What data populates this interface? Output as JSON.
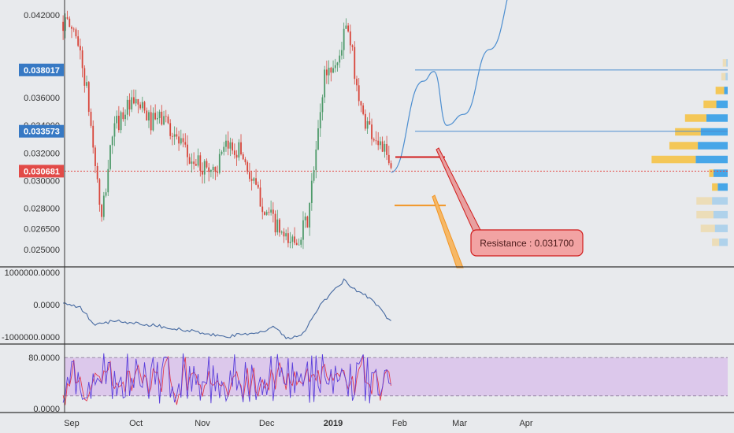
{
  "colors": {
    "background": "#e8eaed",
    "up_candle": "#4e9a6a",
    "down_candle": "#d8453a",
    "price_tag": "#3779c4",
    "current_tag": "#e24a47",
    "resistance": "#d01c1c",
    "support": "#f29422",
    "projection": "#4c8ed0",
    "volume_buy": "#46a6e8",
    "volume_sell": "#f4c757",
    "oscillator_zone": "#d8bfea",
    "rsi_line": "#5b3fdb",
    "rsi_line2": "#e23a50",
    "obv_line": "#4468a0"
  },
  "price_axis": {
    "ticks": [
      "0.042000",
      "0.036000",
      "0.032000",
      "0.030000",
      "0.028000",
      "0.026500",
      "0.025000"
    ],
    "tick_values": [
      0.042,
      0.036,
      0.032,
      0.03,
      0.028,
      0.0265,
      0.025
    ],
    "partial_tick": "0.034000",
    "partial_tick_value": 0.034
  },
  "price_tags": [
    {
      "label": "0.038017",
      "value": 0.038017,
      "kind": "level"
    },
    {
      "label": "0.033573",
      "value": 0.033573,
      "kind": "level"
    },
    {
      "label": "0.030681",
      "value": 0.030681,
      "kind": "current"
    }
  ],
  "annotations": {
    "resistance_label": "Resistance : 0.031700",
    "resistance_value": 0.0317,
    "support_value": 0.0282
  },
  "obv_axis": {
    "ticks": [
      "1000000.0000",
      "0.0000",
      "-1000000.0000"
    ],
    "tick_values": [
      1000000,
      0,
      -1000000
    ]
  },
  "rsi_axis": {
    "ticks": [
      "80.0000",
      "0.0000"
    ],
    "tick_values": [
      80,
      0
    ]
  },
  "time_axis": {
    "labels": [
      {
        "text": "Sep",
        "date": "2018-09-01",
        "bold": false
      },
      {
        "text": "Oct",
        "date": "2018-10-01",
        "bold": false
      },
      {
        "text": "Nov",
        "date": "2018-11-01",
        "bold": false
      },
      {
        "text": "Dec",
        "date": "2018-12-01",
        "bold": false
      },
      {
        "text": "2019",
        "date": "2019-01-01",
        "bold": true
      },
      {
        "text": "Feb",
        "date": "2019-02-01",
        "bold": false
      },
      {
        "text": "Mar",
        "date": "2019-03-01",
        "bold": false
      },
      {
        "text": "Apr",
        "date": "2019-04-01",
        "bold": false
      }
    ]
  },
  "chart_data": [
    {
      "type": "candlestick",
      "title": "",
      "ylim": [
        0.0238,
        0.0428
      ],
      "xlim": [
        "2018-08-27",
        "2019-05-15"
      ],
      "close_path": [
        [
          "2018-08-28",
          0.0415
        ],
        [
          "2018-09-03",
          0.0408
        ],
        [
          "2018-09-08",
          0.0365
        ],
        [
          "2018-09-12",
          0.0312
        ],
        [
          "2018-09-15",
          0.027
        ],
        [
          "2018-09-20",
          0.0335
        ],
        [
          "2018-09-26",
          0.0352
        ],
        [
          "2018-10-02",
          0.0355
        ],
        [
          "2018-10-08",
          0.0342
        ],
        [
          "2018-10-14",
          0.0346
        ],
        [
          "2018-10-20",
          0.033
        ],
        [
          "2018-10-26",
          0.0315
        ],
        [
          "2018-11-01",
          0.031
        ],
        [
          "2018-11-07",
          0.0308
        ],
        [
          "2018-11-13",
          0.0325
        ],
        [
          "2018-11-19",
          0.0322
        ],
        [
          "2018-11-24",
          0.03
        ],
        [
          "2018-11-30",
          0.028
        ],
        [
          "2018-12-05",
          0.0268
        ],
        [
          "2018-12-10",
          0.0255
        ],
        [
          "2018-12-15",
          0.0258
        ],
        [
          "2018-12-20",
          0.027
        ],
        [
          "2018-12-24",
          0.032
        ],
        [
          "2018-12-28",
          0.0378
        ],
        [
          "2019-01-03",
          0.0385
        ],
        [
          "2019-01-07",
          0.0412
        ],
        [
          "2019-01-10",
          0.039
        ],
        [
          "2019-01-14",
          0.035
        ],
        [
          "2019-01-19",
          0.0335
        ],
        [
          "2019-01-24",
          0.0325
        ],
        [
          "2019-01-28",
          0.0306
        ]
      ],
      "volume_profile": {
        "levels": [
          0.0385,
          0.0375,
          0.0365,
          0.0355,
          0.0345,
          0.0335,
          0.0325,
          0.0315,
          0.0305,
          0.0295,
          0.0285,
          0.0275,
          0.0265,
          0.0255
        ],
        "buy": [
          0.02,
          0.03,
          0.05,
          0.16,
          0.3,
          0.38,
          0.42,
          0.45,
          0.2,
          0.14,
          0.22,
          0.2,
          0.18,
          0.12
        ],
        "sell": [
          0.05,
          0.06,
          0.12,
          0.18,
          0.3,
          0.36,
          0.4,
          0.62,
          0.06,
          0.08,
          0.22,
          0.24,
          0.2,
          0.1
        ]
      },
      "projection": [
        [
          "2019-01-28",
          0.0306
        ],
        [
          "2019-02-12",
          0.0372
        ],
        [
          "2019-02-17",
          0.0379
        ],
        [
          "2019-02-23",
          0.034
        ],
        [
          "2019-03-03",
          0.0348
        ],
        [
          "2019-03-15",
          0.0395
        ],
        [
          "2019-03-29",
          0.045
        ]
      ],
      "horizontal_levels": [
        0.038017,
        0.033573
      ]
    },
    {
      "type": "line",
      "title": "",
      "ylim": [
        -1200000,
        1150000
      ],
      "series": [
        {
          "values": [
            [
              "2018-08-28",
              50000
            ],
            [
              "2018-09-05",
              -100000
            ],
            [
              "2018-09-12",
              -650000
            ],
            [
              "2018-09-20",
              -500000
            ],
            [
              "2018-10-05",
              -600000
            ],
            [
              "2018-10-25",
              -800000
            ],
            [
              "2018-11-10",
              -1000000
            ],
            [
              "2018-11-25",
              -900000
            ],
            [
              "2018-12-05",
              -700000
            ],
            [
              "2018-12-10",
              -1050000
            ],
            [
              "2018-12-18",
              -900000
            ],
            [
              "2018-12-24",
              -200000
            ],
            [
              "2018-12-30",
              300000
            ],
            [
              "2019-01-06",
              750000
            ],
            [
              "2019-01-12",
              450000
            ],
            [
              "2019-01-20",
              100000
            ],
            [
              "2019-01-28",
              -550000
            ]
          ]
        }
      ]
    },
    {
      "type": "line",
      "title": "",
      "ylim": [
        -5,
        100
      ],
      "band": [
        20,
        80
      ],
      "series": [
        {
          "name": "",
          "kind": "rsi"
        },
        {
          "name": "",
          "kind": "rsi-signal"
        }
      ]
    }
  ]
}
